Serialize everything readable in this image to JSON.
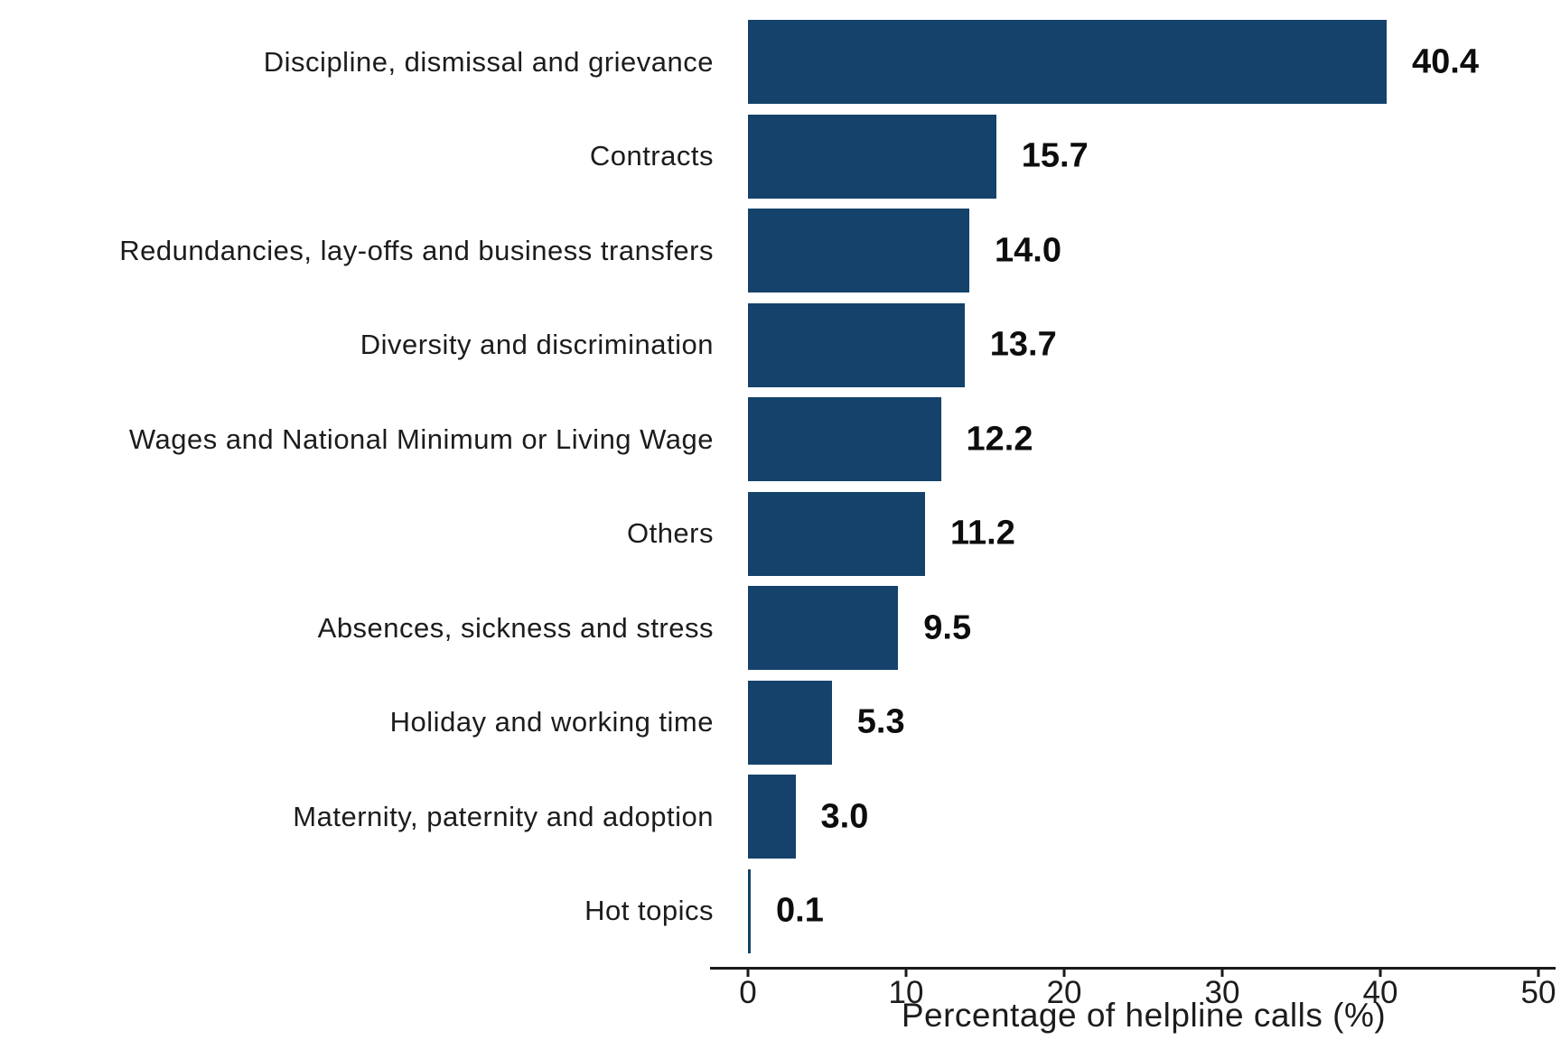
{
  "chart_data": {
    "type": "bar",
    "orientation": "horizontal",
    "title": "",
    "xlabel": "Percentage of helpline calls (%)",
    "ylabel": "",
    "categories": [
      "Discipline, dismissal and grievance",
      "Contracts",
      "Redundancies, lay-offs and business transfers",
      "Diversity and discrimination",
      "Wages and National Minimum or Living Wage",
      "Others",
      "Absences, sickness and stress",
      "Holiday and working time",
      "Maternity, paternity and adoption",
      "Hot topics"
    ],
    "values": [
      40.4,
      15.7,
      14.0,
      13.7,
      12.2,
      11.2,
      9.5,
      5.3,
      3.0,
      0.1
    ],
    "value_labels": [
      "40.4",
      "15.7",
      "14.0",
      "13.7",
      "12.2",
      "11.2",
      "9.5",
      "5.3",
      "3.0",
      "0.1"
    ],
    "x_ticks": [
      0,
      10,
      20,
      30,
      40,
      50
    ],
    "x_tick_labels": [
      "0",
      "10",
      "20",
      "30",
      "40",
      "50"
    ],
    "xlim": [
      0,
      50
    ],
    "bar_color": "#14426b",
    "grid": false,
    "legend": false
  }
}
